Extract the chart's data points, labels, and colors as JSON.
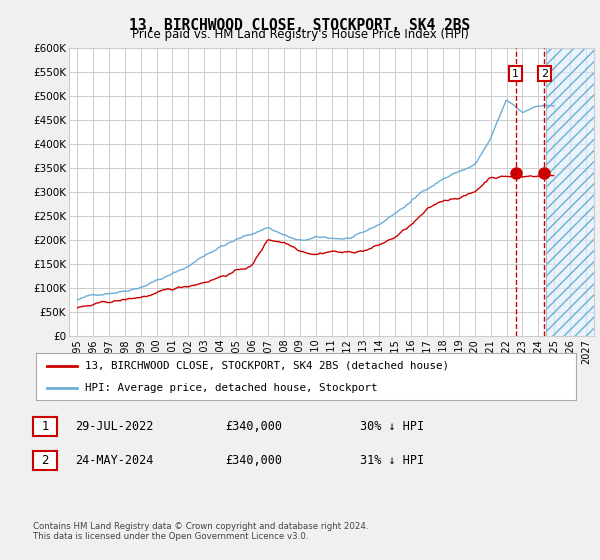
{
  "title": "13, BIRCHWOOD CLOSE, STOCKPORT, SK4 2BS",
  "subtitle": "Price paid vs. HM Land Registry's House Price Index (HPI)",
  "legend_line1": "13, BIRCHWOOD CLOSE, STOCKPORT, SK4 2BS (detached house)",
  "legend_line2": "HPI: Average price, detached house, Stockport",
  "footer": "Contains HM Land Registry data © Crown copyright and database right 2024.\nThis data is licensed under the Open Government Licence v3.0.",
  "table_rows": [
    {
      "num": "1",
      "date": "29-JUL-2022",
      "price": "£340,000",
      "hpi": "30% ↓ HPI"
    },
    {
      "num": "2",
      "date": "24-MAY-2024",
      "price": "£340,000",
      "hpi": "31% ↓ HPI"
    }
  ],
  "sale1_year": 2022.58,
  "sale2_year": 2024.38,
  "sale_price": 340000,
  "ylim": [
    0,
    600000
  ],
  "xlim": [
    1994.5,
    2027.5
  ],
  "yticks": [
    0,
    50000,
    100000,
    150000,
    200000,
    250000,
    300000,
    350000,
    400000,
    450000,
    500000,
    550000,
    600000
  ],
  "ytick_labels": [
    "£0",
    "£50K",
    "£100K",
    "£150K",
    "£200K",
    "£250K",
    "£300K",
    "£350K",
    "£400K",
    "£450K",
    "£500K",
    "£550K",
    "£600K"
  ],
  "xticks": [
    1995,
    1996,
    1997,
    1998,
    1999,
    2000,
    2001,
    2002,
    2003,
    2004,
    2005,
    2006,
    2007,
    2008,
    2009,
    2010,
    2011,
    2012,
    2013,
    2014,
    2015,
    2016,
    2017,
    2018,
    2019,
    2020,
    2021,
    2022,
    2023,
    2024,
    2025,
    2026,
    2027
  ],
  "hpi_color": "#6baed6",
  "price_color": "#cc0000",
  "sale_marker_color": "#cc0000",
  "vline_color": "#cc0000",
  "grid_color": "#cccccc",
  "bg_color": "#f0f0f0",
  "plot_bg": "#ffffff",
  "future_fill_color": "#deebf7",
  "hatch_color": "#6baed6"
}
